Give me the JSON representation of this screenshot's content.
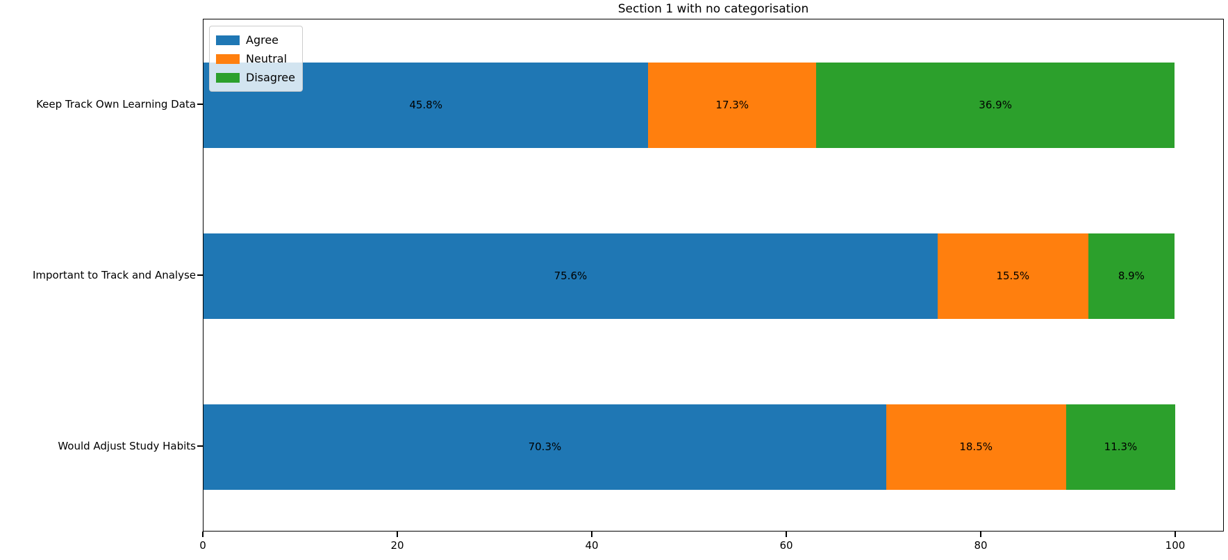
{
  "chart_data": {
    "type": "bar",
    "orientation": "horizontal",
    "stacked": true,
    "title": "Section 1 with no categorisation",
    "categories": [
      "Keep Track Own Learning Data",
      "Important to Track and Analyse",
      "Would Adjust Study Habits"
    ],
    "series": [
      {
        "name": "Agree",
        "color": "#1f77b4",
        "values": [
          45.8,
          75.6,
          70.3
        ]
      },
      {
        "name": "Neutral",
        "color": "#ff7f0e",
        "values": [
          17.3,
          15.5,
          18.5
        ]
      },
      {
        "name": "Disagree",
        "color": "#2ca02c",
        "values": [
          36.9,
          8.9,
          11.3
        ]
      }
    ],
    "bar_labels": [
      [
        "45.8%",
        "17.3%",
        "36.9%"
      ],
      [
        "75.6%",
        "15.5%",
        "8.9%"
      ],
      [
        "70.3%",
        "18.5%",
        "11.3%"
      ]
    ],
    "x_ticks": [
      0,
      20,
      40,
      60,
      80,
      100
    ],
    "xlim": [
      0,
      105
    ],
    "xlabel": "",
    "ylabel": "",
    "grid": false,
    "legend_position": "upper left"
  }
}
